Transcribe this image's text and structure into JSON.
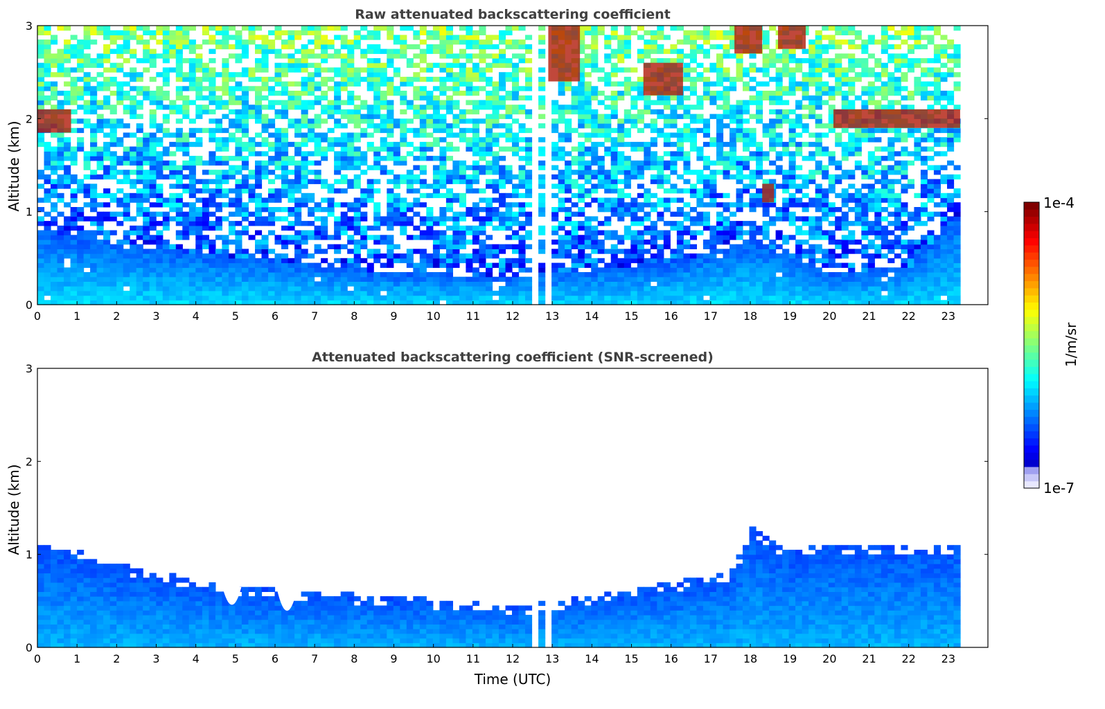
{
  "figure": {
    "xlabel": "Time (UTC)",
    "x_ticks": [
      "0",
      "1",
      "2",
      "3",
      "4",
      "5",
      "6",
      "7",
      "8",
      "9",
      "10",
      "11",
      "12",
      "13",
      "14",
      "15",
      "16",
      "17",
      "18",
      "19",
      "20",
      "21",
      "22",
      "23"
    ]
  },
  "colorbar": {
    "label": "1/m/sr",
    "max_label": "1e-4",
    "min_label": "1e-7",
    "range": [
      1e-07,
      0.0001
    ],
    "scale": "log",
    "colormap": "jet"
  },
  "chart_data": [
    {
      "type": "heatmap",
      "title": "Raw attenuated backscattering coefficient",
      "xlabel": "",
      "ylabel": "Altitude (km)",
      "xlim": [
        0,
        24
      ],
      "ylim": [
        0,
        3
      ],
      "y_ticks": [
        "0",
        "1",
        "2",
        "3"
      ],
      "data_end_time": 23.3,
      "gaps_utc": [
        [
          12.45,
          12.6
        ],
        [
          12.85,
          12.98
        ]
      ],
      "features": [
        {
          "kind": "cloud",
          "t_start": 0.0,
          "t_end": 0.85,
          "alt_bottom": 1.85,
          "alt_top": 2.1
        },
        {
          "kind": "cloud",
          "t_start": 12.9,
          "t_end": 13.7,
          "alt_bottom": 2.4,
          "alt_top": 3.0
        },
        {
          "kind": "cloud",
          "t_start": 15.3,
          "t_end": 16.3,
          "alt_bottom": 2.25,
          "alt_top": 2.6
        },
        {
          "kind": "cloud",
          "t_start": 17.6,
          "t_end": 18.3,
          "alt_bottom": 2.7,
          "alt_top": 3.0
        },
        {
          "kind": "cloud",
          "t_start": 18.7,
          "t_end": 19.4,
          "alt_bottom": 2.75,
          "alt_top": 3.0
        },
        {
          "kind": "cloud",
          "t_start": 18.3,
          "t_end": 18.6,
          "alt_bottom": 1.1,
          "alt_top": 1.3
        },
        {
          "kind": "cloud",
          "t_start": 20.1,
          "t_end": 23.3,
          "alt_bottom": 1.9,
          "alt_top": 2.1
        }
      ],
      "aerosol_layer_top_km": [
        [
          0,
          0.8
        ],
        [
          3,
          0.6
        ],
        [
          9,
          0.35
        ],
        [
          12,
          0.3
        ],
        [
          16,
          0.45
        ],
        [
          18,
          0.7
        ],
        [
          20,
          0.35
        ],
        [
          22,
          0.4
        ],
        [
          23.3,
          1.0
        ]
      ]
    },
    {
      "type": "heatmap",
      "title": "Attenuated backscattering coefficient (SNR-screened)",
      "xlabel": "Time (UTC)",
      "ylabel": "Altitude (km)",
      "xlim": [
        0,
        24
      ],
      "ylim": [
        0,
        3
      ],
      "y_ticks": [
        "0",
        "1",
        "2",
        "3"
      ],
      "data_end_time": 23.3,
      "gaps_utc": [
        [
          12.45,
          12.6
        ],
        [
          12.85,
          12.98
        ]
      ],
      "screened_signal_top_km": [
        [
          0,
          1.1
        ],
        [
          1,
          1.05
        ],
        [
          2,
          0.9
        ],
        [
          3,
          0.8
        ],
        [
          4,
          0.75
        ],
        [
          5,
          0.65
        ],
        [
          7,
          0.6
        ],
        [
          9,
          0.55
        ],
        [
          11,
          0.5
        ],
        [
          12,
          0.45
        ],
        [
          14,
          0.55
        ],
        [
          16,
          0.7
        ],
        [
          17.5,
          0.8
        ],
        [
          18,
          1.3
        ],
        [
          19,
          1.05
        ],
        [
          20,
          1.1
        ],
        [
          23.3,
          1.12
        ]
      ],
      "notches": [
        {
          "t": 4.9,
          "alt": 0.4
        },
        {
          "t": 6.3,
          "alt": 0.32
        }
      ]
    }
  ]
}
